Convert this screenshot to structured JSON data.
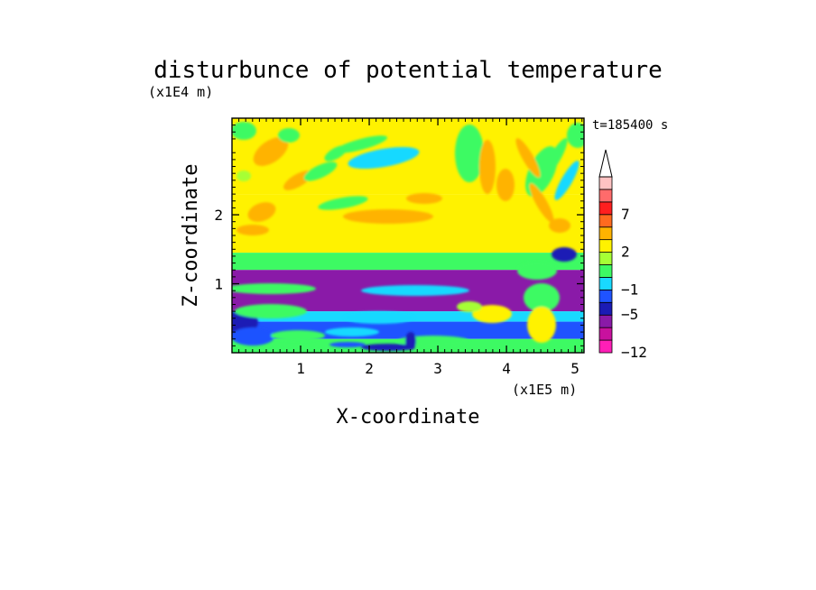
{
  "chart_data": {
    "type": "heatmap",
    "title": "disturbunce of potential temperature",
    "time_label": "t=185400 s",
    "xlabel": "X-coordinate",
    "ylabel": "Z-coordinate",
    "x_unit": "(x1E5 m)",
    "y_unit": "(x1E4 m)",
    "xlim": [
      0,
      5.13
    ],
    "ylim": [
      0,
      3.4
    ],
    "x_ticks": [
      "1",
      "2",
      "3",
      "4",
      "5"
    ],
    "x_tick_values": [
      1,
      2,
      3,
      4,
      5
    ],
    "y_ticks": [
      "1",
      "2"
    ],
    "y_tick_values": [
      1,
      2
    ],
    "colorbar": {
      "levels": [
        -12,
        -9,
        -7,
        -5,
        -3,
        -1,
        0,
        1,
        2,
        3,
        5,
        7,
        9,
        12
      ],
      "colors": [
        "#ff1fb7",
        "#c8119e",
        "#8a1aa8",
        "#1b1bb5",
        "#1f53ff",
        "#19d9ff",
        "#3dfa63",
        "#a6ff35",
        "#fff200",
        "#ffb300",
        "#ff6a1f",
        "#ff1f1f",
        "#ff6b6b",
        "#ffc2c2"
      ],
      "labels": [
        "7",
        "2",
        "−1",
        "−5",
        "−12"
      ],
      "label_values": [
        7,
        2,
        -1,
        -5,
        -12
      ],
      "extend": "max"
    },
    "field_bands": [
      {
        "z": [
          2.3,
          3.4
        ],
        "value": 2.5,
        "note": ""
      },
      {
        "z": [
          1.45,
          2.3
        ],
        "value": 2.2,
        "note": ""
      },
      {
        "z": [
          1.2,
          1.45
        ],
        "value": 0.5,
        "note": ""
      },
      {
        "z": [
          0.6,
          1.2
        ],
        "value": -5.5,
        "note": ""
      },
      {
        "z": [
          0.45,
          0.6
        ],
        "value": -0.5,
        "note": ""
      },
      {
        "z": [
          0.2,
          0.45
        ],
        "value": -2,
        "note": ""
      },
      {
        "z": [
          0.0,
          0.2
        ],
        "value": 0.5,
        "note": ""
      }
    ]
  }
}
